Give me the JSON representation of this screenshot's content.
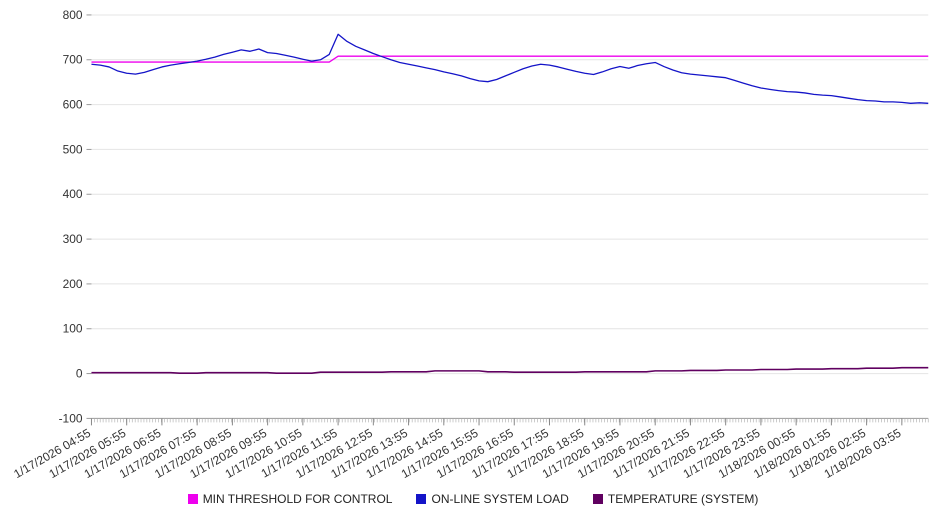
{
  "chart_data": {
    "type": "line",
    "title": "",
    "xlabel": "",
    "ylabel": "",
    "ylim": [
      -100,
      800
    ],
    "grid": "horizontal",
    "legend_position": "bottom",
    "x_start": "1/17/2026 04:55",
    "x_interval_minutes": 15,
    "y_ticks": [
      800,
      700,
      600,
      500,
      400,
      300,
      200,
      100,
      0,
      -100
    ],
    "x_tick_labels": [
      "1/17/2026 04:55",
      "1/17/2026 05:55",
      "1/17/2026 06:55",
      "1/17/2026 07:55",
      "1/17/2026 08:55",
      "1/17/2026 09:55",
      "1/17/2026 10:55",
      "1/17/2026 11:55",
      "1/17/2026 12:55",
      "1/17/2026 13:55",
      "1/17/2026 14:55",
      "1/17/2026 15:55",
      "1/17/2026 16:55",
      "1/17/2026 17:55",
      "1/17/2026 18:55",
      "1/17/2026 19:55",
      "1/17/2026 20:55",
      "1/17/2026 21:55",
      "1/17/2026 22:55",
      "1/17/2026 23:55",
      "1/18/2026 00:55",
      "1/18/2026 01:55",
      "1/18/2026 02:55",
      "1/18/2026 03:55"
    ],
    "series": [
      {
        "name": "MIN THRESHOLD FOR CONTROL",
        "color": "#ee00ee",
        "values": [
          695,
          695,
          695,
          695,
          695,
          695,
          695,
          695,
          695,
          695,
          695,
          695,
          695,
          695,
          695,
          695,
          695,
          695,
          695,
          695,
          695,
          695,
          695,
          695,
          695,
          695,
          695,
          695,
          708,
          708,
          708,
          708,
          708,
          708,
          708,
          708,
          708,
          708,
          708,
          708,
          708,
          708,
          708,
          708,
          708,
          708,
          708,
          708,
          708,
          708,
          708,
          708,
          708,
          708,
          708,
          708,
          708,
          708,
          708,
          708,
          708,
          708,
          708,
          708,
          708,
          708,
          708,
          708,
          708,
          708,
          708,
          708,
          708,
          708,
          708,
          708,
          708,
          708,
          708,
          708,
          708,
          708,
          708,
          708,
          708,
          708,
          708,
          708,
          708,
          708,
          708,
          708,
          708,
          708,
          708,
          708
        ]
      },
      {
        "name": "ON-LINE SYSTEM LOAD",
        "color": "#1414c8",
        "values": [
          690,
          688,
          684,
          675,
          670,
          668,
          672,
          678,
          684,
          688,
          691,
          694,
          697,
          701,
          706,
          712,
          717,
          722,
          719,
          724,
          716,
          714,
          710,
          706,
          701,
          697,
          700,
          712,
          757,
          741,
          730,
          722,
          714,
          707,
          700,
          694,
          690,
          686,
          682,
          678,
          673,
          669,
          664,
          658,
          653,
          651,
          656,
          664,
          672,
          680,
          686,
          690,
          688,
          684,
          679,
          674,
          670,
          667,
          673,
          680,
          685,
          681,
          687,
          691,
          694,
          685,
          677,
          671,
          668,
          666,
          664,
          662,
          660,
          654,
          648,
          642,
          637,
          634,
          631,
          629,
          628,
          626,
          623,
          621,
          620,
          617,
          614,
          611,
          609,
          608,
          606,
          606,
          605,
          603,
          604,
          603
        ]
      },
      {
        "name": "TEMPERATURE (SYSTEM)",
        "color": "#600060",
        "values": [
          2,
          2,
          2,
          2,
          2,
          2,
          2,
          2,
          2,
          2,
          1,
          1,
          1,
          2,
          2,
          2,
          2,
          2,
          2,
          2,
          2,
          1,
          1,
          1,
          1,
          1,
          3,
          3,
          3,
          3,
          3,
          3,
          3,
          3,
          4,
          4,
          4,
          4,
          4,
          6,
          6,
          6,
          6,
          6,
          6,
          4,
          4,
          4,
          3,
          3,
          3,
          3,
          3,
          3,
          3,
          3,
          4,
          4,
          4,
          4,
          4,
          4,
          4,
          4,
          6,
          6,
          6,
          6,
          7,
          7,
          7,
          7,
          8,
          8,
          8,
          8,
          9,
          9,
          9,
          9,
          10,
          10,
          10,
          10,
          11,
          11,
          11,
          11,
          12,
          12,
          12,
          12,
          13,
          13,
          13,
          13
        ]
      }
    ]
  }
}
